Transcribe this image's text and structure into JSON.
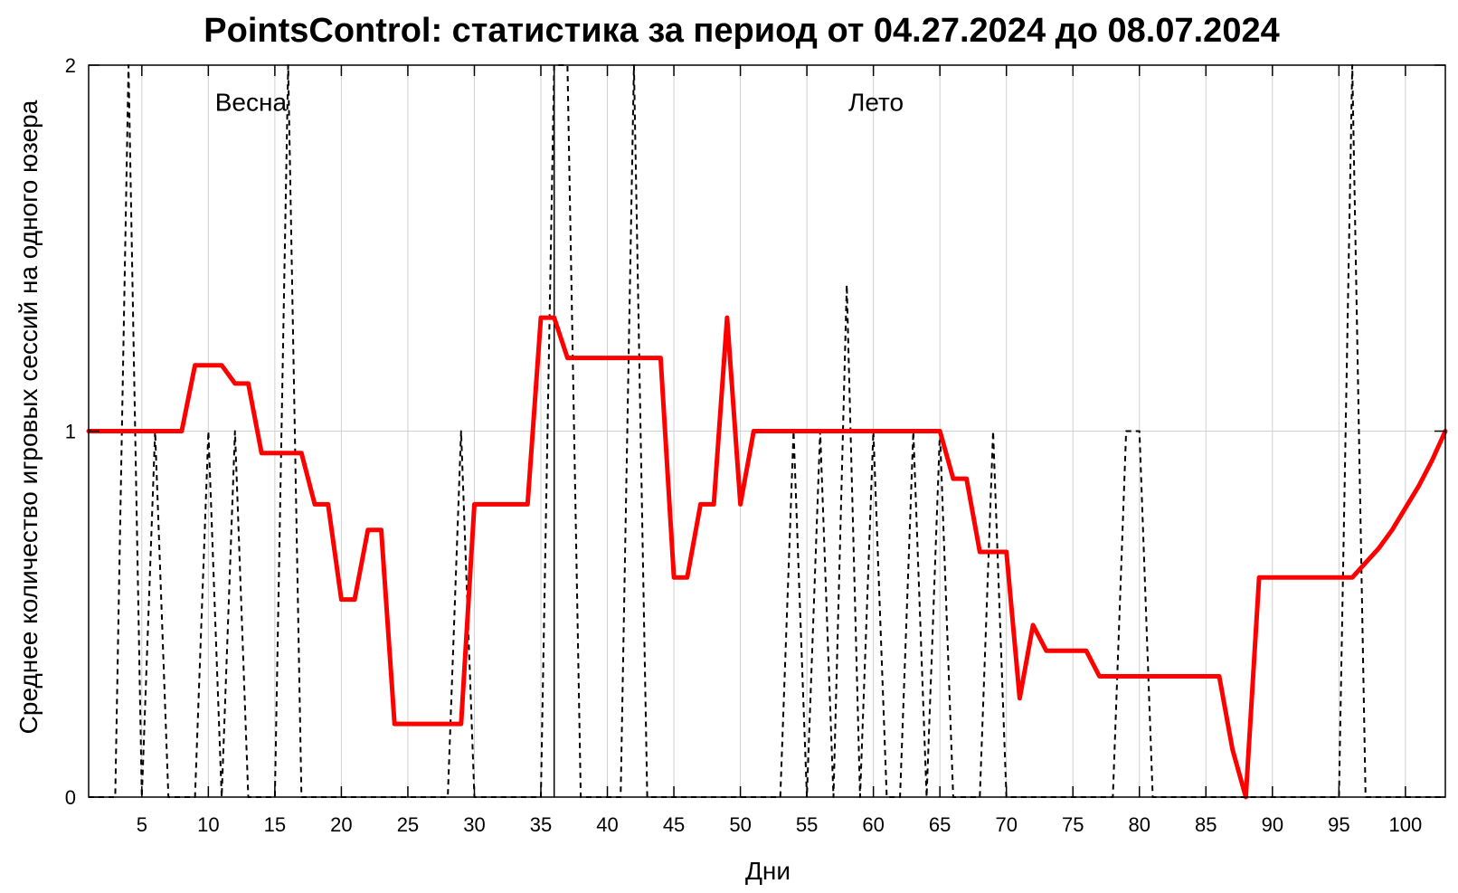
{
  "chart_data": {
    "type": "line",
    "title": "PointsControl: статистика за период от 04.27.2024 до 08.07.2024",
    "xlabel": "Дни",
    "ylabel": "Среднее количество игровых сессий на одного юзера",
    "xlim": [
      1,
      103
    ],
    "ylim": [
      0,
      2
    ],
    "x_ticks": [
      5,
      10,
      15,
      20,
      25,
      30,
      35,
      40,
      45,
      50,
      55,
      60,
      65,
      70,
      75,
      80,
      85,
      90,
      95,
      100
    ],
    "x_tick_labels": [
      "5",
      "10",
      "15",
      "20",
      "25",
      "30",
      "35",
      "40",
      "45",
      "50",
      "55",
      "60",
      "65",
      "70",
      "75",
      "80",
      "85",
      "90",
      "95",
      "100"
    ],
    "y_ticks": [
      0,
      1,
      2
    ],
    "y_tick_labels": [
      "0",
      "1",
      "2"
    ],
    "grid": true,
    "legend": "none",
    "season_divider_x": 36,
    "annotations": [
      {
        "text": "Весна",
        "x": 13.2,
        "y": 1.9
      },
      {
        "text": "Лето",
        "x": 60.2,
        "y": 1.9
      }
    ],
    "series": [
      {
        "style": "dashed",
        "color": "#000000",
        "x": [
          1,
          2,
          3,
          4,
          5,
          6,
          7,
          8,
          9,
          10,
          11,
          12,
          13,
          14,
          15,
          16,
          17,
          18,
          19,
          20,
          21,
          22,
          23,
          24,
          25,
          26,
          27,
          28,
          29,
          30,
          31,
          32,
          33,
          34,
          35,
          36,
          37,
          38,
          39,
          40,
          41,
          42,
          43,
          44,
          45,
          46,
          47,
          48,
          49,
          50,
          51,
          52,
          53,
          54,
          55,
          56,
          57,
          58,
          59,
          60,
          61,
          62,
          63,
          64,
          65,
          66,
          67,
          68,
          69,
          70,
          71,
          72,
          73,
          74,
          75,
          76,
          77,
          78,
          79,
          80,
          81,
          82,
          83,
          84,
          85,
          86,
          87,
          88,
          89,
          90,
          91,
          92,
          93,
          94,
          95,
          96,
          97,
          98,
          99,
          100,
          101,
          102,
          103
        ],
        "values": [
          0,
          0,
          0,
          2,
          0,
          1,
          0,
          0,
          0,
          1,
          0,
          1,
          0,
          0,
          0,
          2,
          0,
          0,
          0,
          0,
          0,
          0,
          0,
          0,
          0,
          0,
          0,
          0,
          1,
          0,
          0,
          0,
          0,
          0,
          0,
          2,
          2,
          0,
          0,
          0,
          0,
          2,
          0,
          0,
          0,
          0,
          0,
          0,
          0,
          0,
          0,
          0,
          0,
          1,
          0,
          1,
          0,
          1.4,
          0,
          1,
          0,
          0,
          1,
          0,
          1,
          0,
          0,
          0,
          1,
          0,
          0,
          0,
          0,
          0,
          0,
          0,
          0,
          0,
          1,
          1,
          0,
          0,
          0,
          0,
          0,
          0,
          0,
          0,
          0,
          0,
          0,
          0,
          0,
          0,
          0,
          2,
          0,
          0,
          0,
          0,
          0,
          0,
          0
        ]
      },
      {
        "style": "solid",
        "color": "#ff0000",
        "x": [
          1,
          2,
          3,
          4,
          5,
          6,
          7,
          8,
          9,
          10,
          11,
          12,
          13,
          14,
          15,
          16,
          17,
          18,
          19,
          20,
          21,
          22,
          23,
          24,
          25,
          26,
          27,
          28,
          29,
          30,
          31,
          32,
          33,
          34,
          35,
          36,
          37,
          38,
          39,
          40,
          41,
          42,
          43,
          44,
          45,
          46,
          47,
          48,
          49,
          50,
          51,
          52,
          53,
          54,
          55,
          56,
          57,
          58,
          59,
          60,
          61,
          62,
          63,
          64,
          65,
          66,
          67,
          68,
          69,
          70,
          71,
          72,
          73,
          74,
          75,
          76,
          77,
          78,
          79,
          80,
          81,
          82,
          83,
          84,
          85,
          86,
          87,
          88,
          89,
          90,
          91,
          92,
          93,
          94,
          95,
          96,
          97,
          98,
          99,
          100,
          101,
          102,
          103
        ],
        "values": [
          1,
          1,
          1,
          1,
          1,
          1,
          1,
          1,
          1.18,
          1.18,
          1.18,
          1.13,
          1.13,
          0.94,
          0.94,
          0.94,
          0.94,
          0.8,
          0.8,
          0.54,
          0.54,
          0.73,
          0.73,
          0.2,
          0.2,
          0.2,
          0.2,
          0.2,
          0.2,
          0.8,
          0.8,
          0.8,
          0.8,
          0.8,
          1.31,
          1.31,
          1.2,
          1.2,
          1.2,
          1.2,
          1.2,
          1.2,
          1.2,
          1.2,
          0.6,
          0.6,
          0.8,
          0.8,
          1.31,
          0.8,
          1,
          1,
          1,
          1,
          1,
          1,
          1,
          1,
          1,
          1,
          1,
          1,
          1,
          1,
          1,
          0.87,
          0.87,
          0.67,
          0.67,
          0.67,
          0.27,
          0.47,
          0.4,
          0.4,
          0.4,
          0.4,
          0.33,
          0.33,
          0.33,
          0.33,
          0.33,
          0.33,
          0.33,
          0.33,
          0.33,
          0.33,
          0.13,
          0,
          0.6,
          0.6,
          0.6,
          0.6,
          0.6,
          0.6,
          0.6,
          0.6,
          0.64,
          0.68,
          0.73,
          0.79,
          0.85,
          0.92,
          1
        ]
      }
    ]
  }
}
